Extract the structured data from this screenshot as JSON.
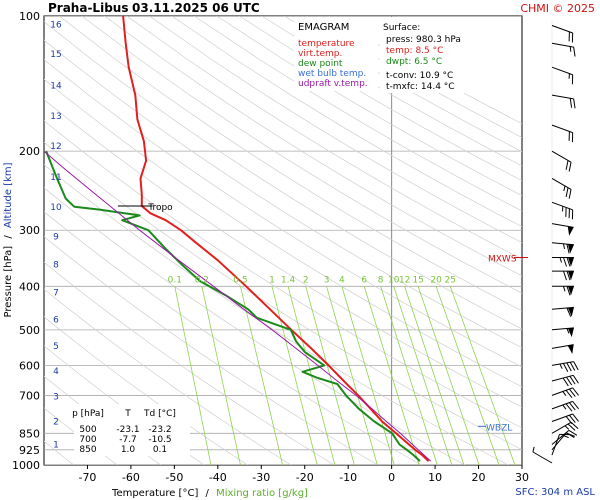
{
  "header": {
    "station": "Praha-Libus",
    "datetime": "03.11.2025 06 UTC",
    "copyright": "CHMI © 2025"
  },
  "legend": {
    "title": "EMAGRAM",
    "items": [
      {
        "label": "temperature",
        "color": "#e0201e"
      },
      {
        "label": "virt.temp.",
        "color": "#e0201e"
      },
      {
        "label": "dew point",
        "color": "#1a8a1a"
      },
      {
        "label": "wet bulb temp.",
        "color": "#3a6fd8"
      },
      {
        "label": "udpraft v.temp.",
        "color": "#9a1aa6"
      }
    ]
  },
  "surface": {
    "title": "Surface:",
    "press": "press: 980.3 hPa",
    "temp": "temp: 8.5 °C",
    "dwpt": "dwpt: 6.5 °C",
    "tconv": "t-conv: 10.9 °C",
    "tmxfc": "t-mxfc: 14.4 °C",
    "temp_color": "#e0201e",
    "dwpt_color": "#1a8a1a"
  },
  "table": {
    "headers": [
      "p [hPa]",
      "T",
      "Td [°C]"
    ],
    "rows": [
      [
        "500",
        "-23.1",
        "-23.2"
      ],
      [
        "700",
        "-7.7",
        "-10.5"
      ],
      [
        "850",
        "1.0",
        "0.1"
      ]
    ]
  },
  "annotations": {
    "tropo": "Tropo",
    "mxws": "MXWS",
    "wbzl": "WBZL",
    "sfc": "SFC: 304 m ASL"
  },
  "chart_data": {
    "type": "line",
    "title": "Praha-Libus 03.11.2025 06 UTC",
    "xlabel": "Temperature [°C]",
    "xlabel_sep": "/",
    "xlabel2": "Mixing ratio [g/kg]",
    "ylabel": "Pressure [hPa]",
    "ylabel_sep": "/",
    "ylabel2": "Altitude [km]",
    "xlim": [
      -80,
      30
    ],
    "ylim": [
      1000,
      100
    ],
    "y_scale": "log",
    "x_ticks": [
      -70,
      -60,
      -50,
      -40,
      -30,
      -20,
      -10,
      0,
      10,
      20,
      30
    ],
    "y_ticks": [
      100,
      200,
      300,
      400,
      500,
      600,
      700,
      850,
      925,
      1000
    ],
    "altitude_ticks_km": [
      {
        "km": "1",
        "p": 895
      },
      {
        "km": "2",
        "p": 795
      },
      {
        "km": "3",
        "p": 700
      },
      {
        "km": "4",
        "p": 615
      },
      {
        "km": "5",
        "p": 540
      },
      {
        "km": "6",
        "p": 472
      },
      {
        "km": "7",
        "p": 411
      },
      {
        "km": "8",
        "p": 356
      },
      {
        "km": "9",
        "p": 308
      },
      {
        "km": "10",
        "p": 265
      },
      {
        "km": "11",
        "p": 227
      },
      {
        "km": "12",
        "p": 194
      },
      {
        "km": "13",
        "p": 166
      },
      {
        "km": "14",
        "p": 142
      },
      {
        "km": "15",
        "p": 121
      },
      {
        "km": "16",
        "p": 104
      }
    ],
    "mixing_ratio_labels": [
      "0.1",
      "0.2",
      "0.5",
      "1",
      "1.4",
      "2",
      "3",
      "4",
      "6",
      "8",
      "10",
      "12",
      "15",
      "20",
      "25"
    ],
    "mixing_ratio_label_colors": "#7ac43a",
    "series": [
      {
        "name": "temperature",
        "color": "#e0201e",
        "points": [
          [
            980,
            8.5
          ],
          [
            950,
            7.0
          ],
          [
            925,
            5.4
          ],
          [
            900,
            4.0
          ],
          [
            850,
            1.0
          ],
          [
            800,
            -2.2
          ],
          [
            750,
            -4.8
          ],
          [
            700,
            -7.7
          ],
          [
            650,
            -11.0
          ],
          [
            600,
            -14.5
          ],
          [
            550,
            -18.5
          ],
          [
            500,
            -23.1
          ],
          [
            450,
            -28.0
          ],
          [
            400,
            -33.5
          ],
          [
            350,
            -40.0
          ],
          [
            320,
            -45.0
          ],
          [
            300,
            -48.5
          ],
          [
            285,
            -52.0
          ],
          [
            275,
            -55.5
          ],
          [
            265,
            -57.5
          ],
          [
            250,
            -57.5
          ],
          [
            230,
            -57.8
          ],
          [
            210,
            -56.5
          ],
          [
            190,
            -57.0
          ],
          [
            170,
            -58.5
          ],
          [
            150,
            -59.0
          ],
          [
            130,
            -60.5
          ],
          [
            115,
            -61.2
          ],
          [
            100,
            -61.8
          ]
        ]
      },
      {
        "name": "dew point",
        "color": "#1a8a1a",
        "points": [
          [
            980,
            6.5
          ],
          [
            950,
            5.0
          ],
          [
            925,
            3.5
          ],
          [
            900,
            1.8
          ],
          [
            850,
            0.1
          ],
          [
            800,
            -4.0
          ],
          [
            750,
            -7.5
          ],
          [
            700,
            -10.5
          ],
          [
            660,
            -12.5
          ],
          [
            640,
            -17.0
          ],
          [
            620,
            -20.5
          ],
          [
            600,
            -15.5
          ],
          [
            560,
            -20.0
          ],
          [
            530,
            -22.0
          ],
          [
            500,
            -23.2
          ],
          [
            470,
            -31.0
          ],
          [
            450,
            -33.0
          ],
          [
            420,
            -38.0
          ],
          [
            390,
            -44.0
          ],
          [
            360,
            -48.0
          ],
          [
            330,
            -52.0
          ],
          [
            300,
            -56.0
          ],
          [
            285,
            -62.0
          ],
          [
            278,
            -58.0
          ],
          [
            270,
            -67.0
          ],
          [
            266,
            -73.0
          ],
          [
            255,
            -75.0
          ],
          [
            230,
            -77.0
          ],
          [
            200,
            -79.5
          ]
        ]
      },
      {
        "name": "udpraft v.temp.",
        "color": "#9a1aa6",
        "points": [
          [
            980,
            9.0
          ],
          [
            900,
            4.8
          ],
          [
            850,
            2.0
          ],
          [
            800,
            -1.2
          ],
          [
            750,
            -4.5
          ],
          [
            700,
            -8.2
          ],
          [
            650,
            -12.5
          ],
          [
            600,
            -17.0
          ],
          [
            550,
            -22.0
          ],
          [
            500,
            -27.5
          ],
          [
            450,
            -34.0
          ],
          [
            400,
            -41.0
          ],
          [
            350,
            -49.0
          ],
          [
            300,
            -58.0
          ],
          [
            250,
            -68.0
          ],
          [
            220,
            -75.0
          ],
          [
            200,
            -80.0
          ]
        ]
      }
    ],
    "wind_barbs": [
      {
        "p": 990,
        "dir": 120,
        "speed": 5
      },
      {
        "p": 950,
        "dir": 200,
        "speed": 10
      },
      {
        "p": 925,
        "dir": 220,
        "speed": 15
      },
      {
        "p": 900,
        "dir": 230,
        "speed": 20
      },
      {
        "p": 850,
        "dir": 240,
        "speed": 25
      },
      {
        "p": 800,
        "dir": 250,
        "speed": 30
      },
      {
        "p": 750,
        "dir": 250,
        "speed": 35
      },
      {
        "p": 700,
        "dir": 250,
        "speed": 35
      },
      {
        "p": 650,
        "dir": 255,
        "speed": 40
      },
      {
        "p": 600,
        "dir": 260,
        "speed": 45
      },
      {
        "p": 550,
        "dir": 260,
        "speed": 50
      },
      {
        "p": 500,
        "dir": 265,
        "speed": 55
      },
      {
        "p": 450,
        "dir": 265,
        "speed": 60
      },
      {
        "p": 400,
        "dir": 270,
        "speed": 65
      },
      {
        "p": 370,
        "dir": 270,
        "speed": 70
      },
      {
        "p": 345,
        "dir": 270,
        "speed": 75
      },
      {
        "p": 320,
        "dir": 275,
        "speed": 65
      },
      {
        "p": 290,
        "dir": 280,
        "speed": 50
      },
      {
        "p": 260,
        "dir": 290,
        "speed": 35
      },
      {
        "p": 230,
        "dir": 300,
        "speed": 25
      },
      {
        "p": 200,
        "dir": 300,
        "speed": 20
      },
      {
        "p": 175,
        "dir": 290,
        "speed": 20
      },
      {
        "p": 150,
        "dir": 280,
        "speed": 20
      },
      {
        "p": 130,
        "dir": 290,
        "speed": 15
      },
      {
        "p": 115,
        "dir": 280,
        "speed": 15
      },
      {
        "p": 105,
        "dir": 290,
        "speed": 20
      }
    ],
    "tropopause_hpa": 265,
    "mxws_hpa": 345,
    "wbzl_hpa": 820,
    "grid": true,
    "legend_position": "top-center"
  }
}
